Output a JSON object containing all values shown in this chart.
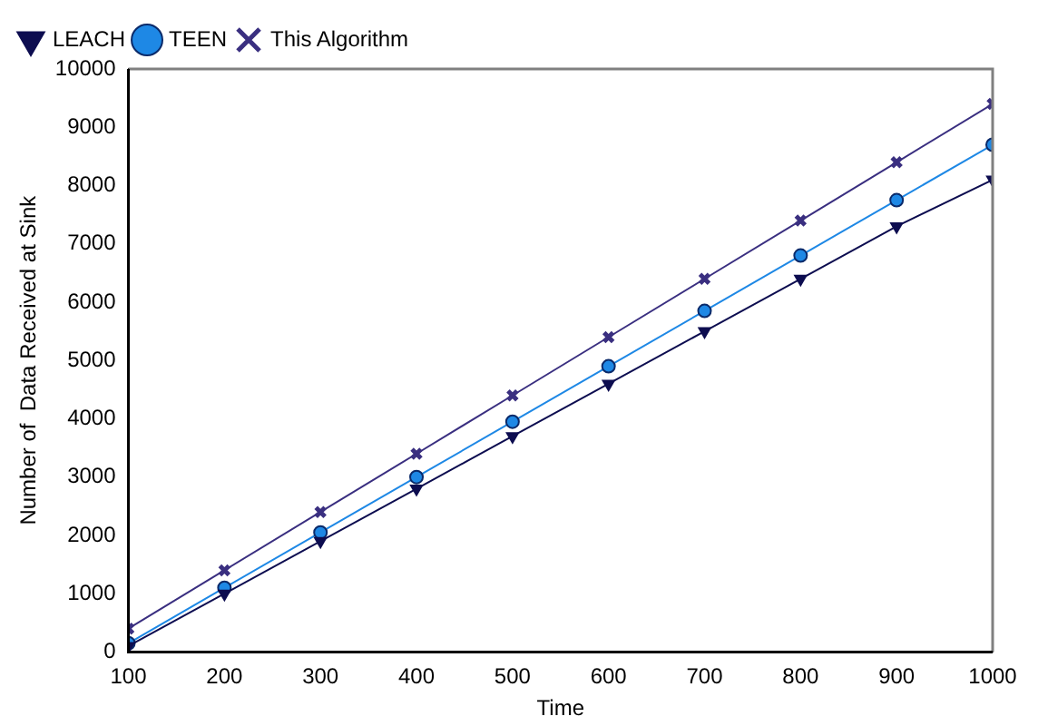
{
  "chart_data": {
    "type": "line",
    "xlabel": "Time",
    "ylabel": "Number of  Data Received at Sink",
    "x": [
      100,
      200,
      300,
      400,
      500,
      600,
      700,
      800,
      900,
      1000
    ],
    "series": [
      {
        "name": "This Algorithm",
        "color": "#3a2f80",
        "marker": "cross",
        "values": [
          400,
          1400,
          2400,
          3400,
          4400,
          5400,
          6400,
          7400,
          8400,
          9400
        ]
      },
      {
        "name": "TEEN",
        "color": "#1e88e5",
        "marker": "circle",
        "values": [
          150,
          1100,
          2050,
          3000,
          3950,
          4900,
          5850,
          6800,
          7750,
          8700
        ]
      },
      {
        "name": "LEACH",
        "color": "#0d0d50",
        "marker": "triangle",
        "values": [
          100,
          1000,
          1900,
          2800,
          3700,
          4600,
          5500,
          6400,
          7300,
          8100
        ]
      }
    ],
    "xlim": [
      100,
      1000
    ],
    "xticks": [
      100,
      200,
      300,
      400,
      500,
      600,
      700,
      800,
      900,
      1000
    ],
    "ylim": [
      0,
      10000
    ],
    "yticks": [
      0,
      1000,
      2000,
      3000,
      4000,
      5000,
      6000,
      7000,
      8000,
      9000,
      10000
    ],
    "legend": "top left"
  }
}
